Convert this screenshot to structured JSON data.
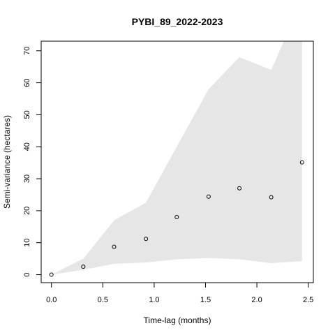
{
  "chart_data": {
    "type": "scatter",
    "title": "PYBI_89_2022-2023",
    "xlabel": "Time-lag (months)",
    "ylabel": "Semi-variance (hectares)",
    "xlim": [
      -0.1,
      2.55
    ],
    "ylim": [
      -2.5,
      73
    ],
    "x_ticks": [
      "0.0",
      "0.5",
      "1.0",
      "1.5",
      "2.0",
      "2.5"
    ],
    "y_ticks": [
      "0",
      "10",
      "20",
      "30",
      "40",
      "50",
      "60",
      "70"
    ],
    "points": [
      {
        "x": 0.0,
        "y": 0.0
      },
      {
        "x": 0.31,
        "y": 2.5
      },
      {
        "x": 0.61,
        "y": 8.7
      },
      {
        "x": 0.92,
        "y": 11.2
      },
      {
        "x": 1.22,
        "y": 18.0
      },
      {
        "x": 1.53,
        "y": 24.4
      },
      {
        "x": 1.83,
        "y": 27.0
      },
      {
        "x": 2.14,
        "y": 24.2
      },
      {
        "x": 2.44,
        "y": 35.1
      }
    ],
    "envelope": {
      "x": [
        0.0,
        0.31,
        0.61,
        0.92,
        1.22,
        1.53,
        1.83,
        2.14,
        2.44
      ],
      "upper": [
        0.0,
        5.0,
        17.0,
        22.5,
        40.0,
        58.0,
        68.0,
        64.0,
        86.0
      ],
      "lower": [
        0.0,
        1.5,
        3.4,
        3.8,
        4.8,
        5.2,
        4.8,
        3.6,
        4.2
      ]
    },
    "envelope_color": "#e6e6e6",
    "point_color": "#000000",
    "grid": false
  }
}
